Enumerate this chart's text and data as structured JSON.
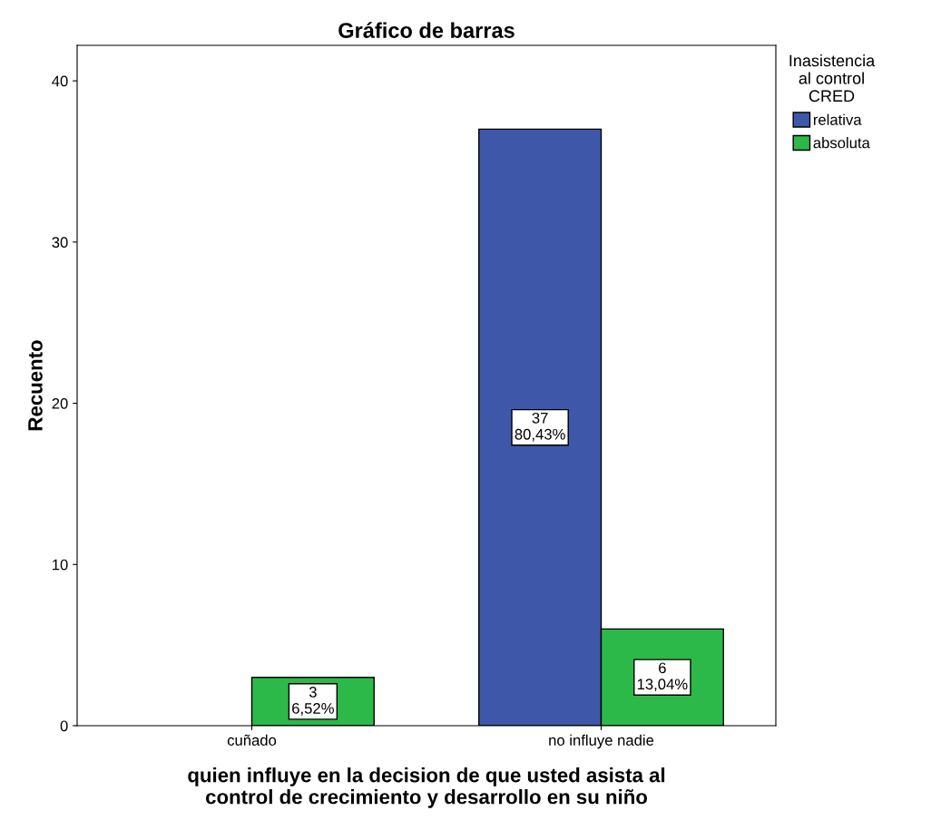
{
  "chart_data": {
    "type": "bar",
    "title": "Gráfico de barras",
    "xlabel": "quien influye en la decision de que usted asista al\ncontrol de crecimiento y desarrollo en su niño",
    "ylabel": "Recuento",
    "legend_title": "Inasistencia\nal control\nCRED",
    "categories": [
      "cuñado",
      "no influye nadie"
    ],
    "series": [
      {
        "name": "relativa",
        "color": "#3f57a8",
        "values": [
          null,
          37
        ],
        "value_labels": [
          null,
          "37\n80,43%"
        ]
      },
      {
        "name": "absoluta",
        "color": "#2db84a",
        "values": [
          3,
          6
        ],
        "value_labels": [
          "3\n6,52%",
          "6\n13,04%"
        ]
      }
    ],
    "ylim": [
      0,
      42.2
    ],
    "yticks": [
      0,
      10,
      20,
      30,
      40
    ],
    "grid": false,
    "legend": "right"
  }
}
